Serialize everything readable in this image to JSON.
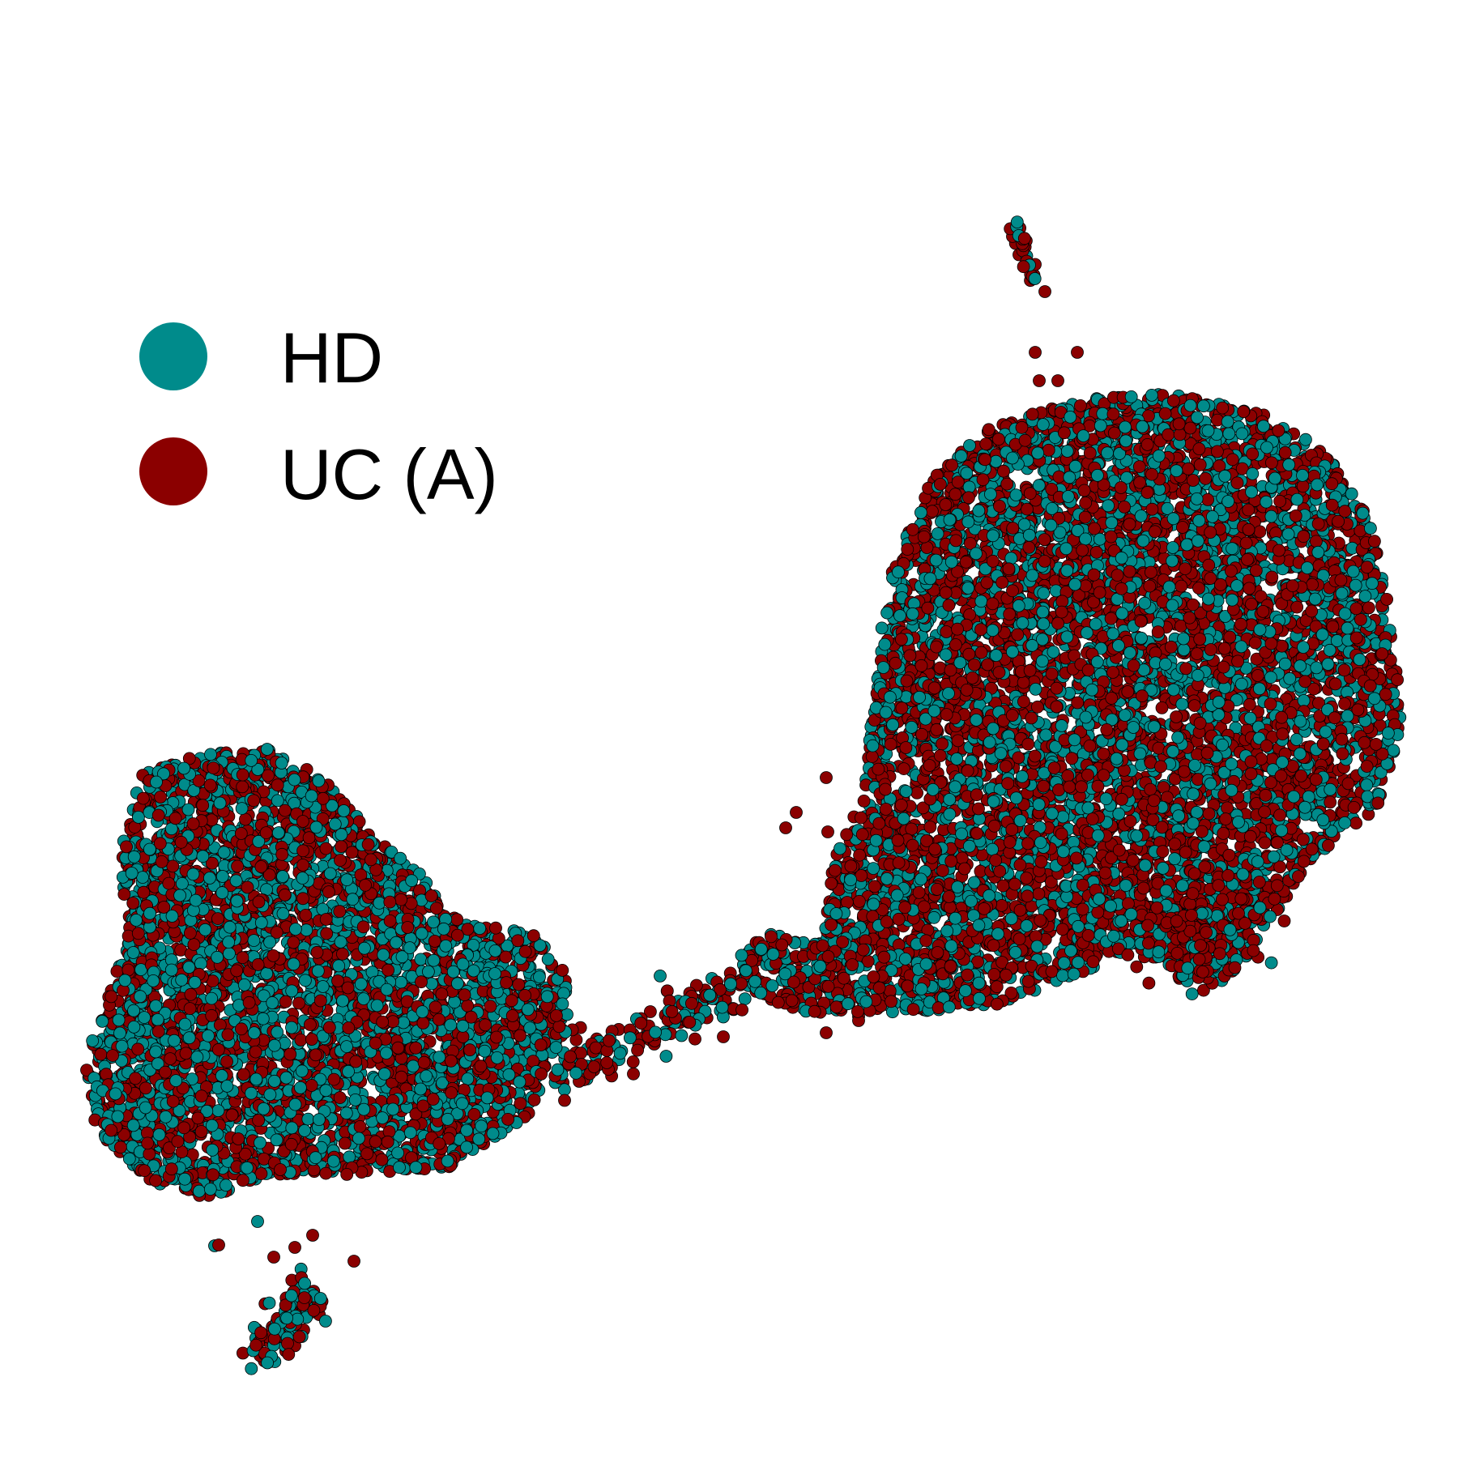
{
  "chart_data": {
    "type": "scatter",
    "title": "",
    "xlabel": "",
    "ylabel": "",
    "axes_visible": false,
    "grid": false,
    "legend": {
      "placement": "top-left"
    },
    "series": [
      {
        "name": "HD",
        "color": "#008B8B"
      },
      {
        "name": "UC (A)",
        "color": "#8B0000"
      }
    ],
    "point_style": {
      "stroke": "#000000",
      "mixed": "interleaved",
      "approximate_point_count": 14000
    },
    "clusters": [
      {
        "id": "large-right",
        "center": [
          0.76,
          0.62
        ],
        "extent": [
          0.36,
          0.42
        ],
        "hd_share": 0.42
      },
      {
        "id": "left",
        "center": [
          0.24,
          0.37
        ],
        "extent": [
          0.31,
          0.32
        ],
        "hd_share": 0.52
      },
      {
        "id": "bridge",
        "center": [
          0.47,
          0.33
        ],
        "extent": [
          0.12,
          0.04
        ],
        "hd_share": 0.35
      },
      {
        "id": "top-strand",
        "center": [
          0.72,
          0.89
        ],
        "extent": [
          0.02,
          0.06
        ],
        "hd_share": 0.3
      },
      {
        "id": "bottom-small",
        "center": [
          0.21,
          0.1
        ],
        "extent": [
          0.05,
          0.09
        ],
        "hd_share": 0.5
      }
    ]
  }
}
